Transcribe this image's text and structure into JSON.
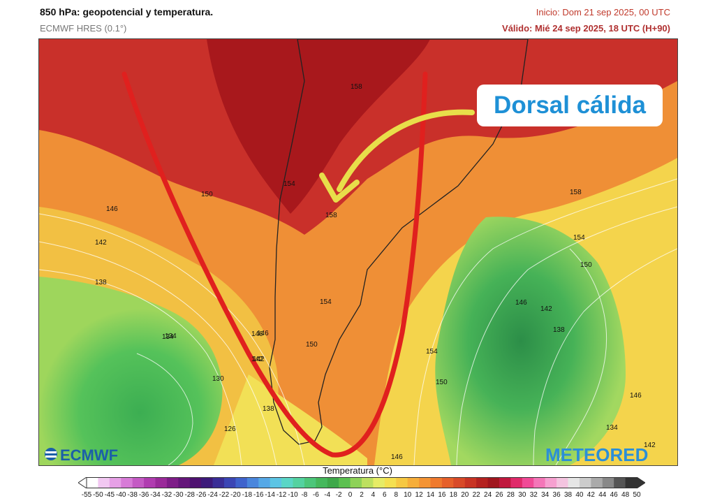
{
  "header": {
    "title": "850 hPa: geopotencial y temperatura.",
    "model": "ECMWF HRES (0.1°)",
    "init": "Inicio: Dom 21 sep 2025, 00 UTC",
    "valid": "Válido: Mié 24 sep 2025, 18 UTC (H+90)"
  },
  "annotation": {
    "label": "Dorsal cálida",
    "text_color": "#1e90d6",
    "arrow_color": "#e8de4a",
    "ridge_line_color": "#e0201e"
  },
  "contour_labels": [
    "158",
    "150",
    "146",
    "142",
    "138",
    "134",
    "130",
    "126",
    "158",
    "154",
    "154",
    "150",
    "146",
    "142",
    "138",
    "158",
    "154",
    "150",
    "146",
    "142",
    "138",
    "134",
    "150",
    "154",
    "146",
    "142",
    "146",
    "134",
    "142",
    "146"
  ],
  "logos": {
    "left": "ECMWF",
    "right": "METEORED"
  },
  "legend": {
    "title": "Temperatura (°C)",
    "ticks": [
      "-55",
      "-50",
      "-45",
      "-40",
      "-38",
      "-36",
      "-34",
      "-32",
      "-30",
      "-28",
      "-26",
      "-24",
      "-22",
      "-20",
      "-18",
      "-16",
      "-14",
      "-12",
      "-10",
      "-8",
      "-6",
      "-4",
      "-2",
      "0",
      "2",
      "4",
      "6",
      "8",
      "10",
      "12",
      "14",
      "16",
      "18",
      "20",
      "22",
      "24",
      "26",
      "28",
      "30",
      "32",
      "34",
      "36",
      "38",
      "40",
      "42",
      "44",
      "46",
      "48",
      "50"
    ],
    "colors": [
      "#ffffff",
      "#f2c8f2",
      "#e6a0e6",
      "#d77bd7",
      "#c45ac4",
      "#b03cb0",
      "#9a2a9a",
      "#7e1d88",
      "#65167a",
      "#4e1270",
      "#3d1a7a",
      "#3a2e96",
      "#3b46b4",
      "#3f63cc",
      "#4a86dc",
      "#56a8e6",
      "#5cc4e4",
      "#5ad6c6",
      "#54d2a0",
      "#4cc67a",
      "#45b85c",
      "#3ea84a",
      "#5cc050",
      "#8ed258",
      "#bde060",
      "#e6ec66",
      "#f4e050",
      "#f6c842",
      "#f6ae3a",
      "#f49434",
      "#ef7a2e",
      "#e6602a",
      "#d84a28",
      "#c83424",
      "#b42220",
      "#a0161e",
      "#c0183e",
      "#e02a6a",
      "#f04a96",
      "#f476b8",
      "#f6a0d0",
      "#f4c4e0",
      "#e6e6e6",
      "#cccccc",
      "#aaaaaa",
      "#888888",
      "#555555",
      "#333333"
    ]
  }
}
